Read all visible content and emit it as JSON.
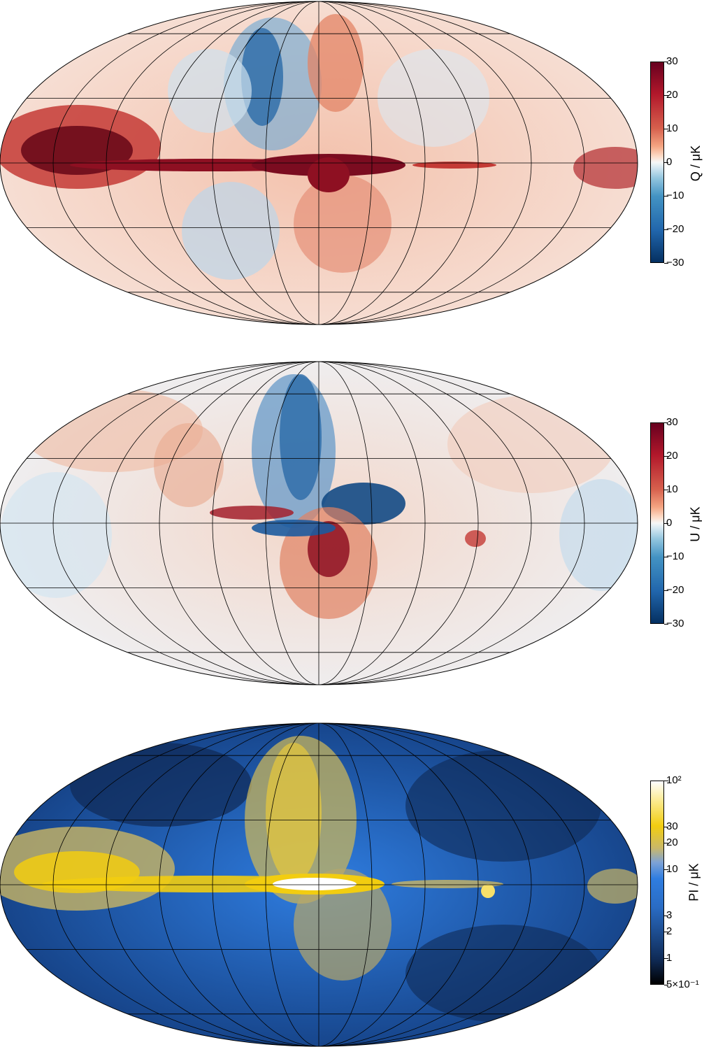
{
  "panels": [
    {
      "id": "q",
      "title": "Q / μK",
      "colormap": "diverging",
      "colors": {
        "neg": "#1d5b9e",
        "zero": "#f7f7f7",
        "pos": "#6b0a1a"
      },
      "tick_labels": [
        "30",
        "20",
        "10",
        "0",
        "−10",
        "−20",
        "−30"
      ],
      "tick_values": [
        30,
        20,
        10,
        0,
        -10,
        -20,
        -30
      ],
      "range": [
        -30,
        30
      ]
    },
    {
      "id": "u",
      "title": "U / μK",
      "colormap": "diverging",
      "colors": {
        "neg": "#1d5b9e",
        "zero": "#f7f7f7",
        "pos": "#6b0a1a"
      },
      "tick_labels": [
        "30",
        "20",
        "10",
        "0",
        "−10",
        "−20",
        "−30"
      ],
      "tick_values": [
        30,
        20,
        10,
        0,
        -10,
        -20,
        -30
      ],
      "range": [
        -30,
        30
      ]
    },
    {
      "id": "pi",
      "title": "PI / μK",
      "colormap": "log-planck",
      "colors": {
        "low": "#000000",
        "mid": "#2f7de0",
        "high": "#f2cd10",
        "top": "#ffffff"
      },
      "tick_labels": [
        "10²",
        "30",
        "20",
        "10",
        "3",
        "2",
        "1",
        "5×10⁻¹"
      ],
      "tick_values": [
        100,
        30,
        20,
        10,
        3,
        2,
        1,
        0.5
      ],
      "range": [
        0.5,
        100
      ],
      "scale": "log"
    }
  ]
}
